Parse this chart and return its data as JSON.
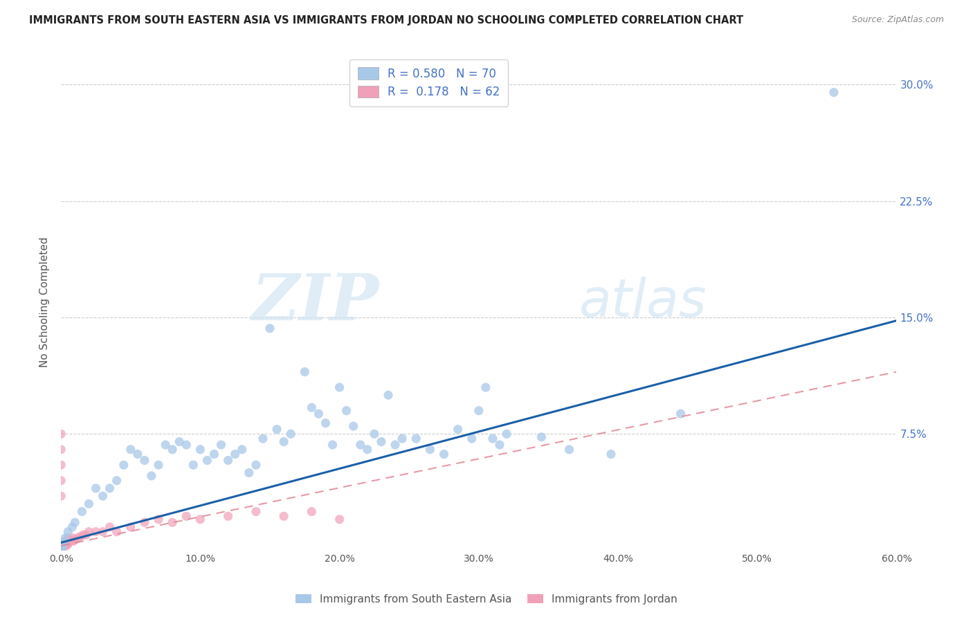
{
  "title": "IMMIGRANTS FROM SOUTH EASTERN ASIA VS IMMIGRANTS FROM JORDAN NO SCHOOLING COMPLETED CORRELATION CHART",
  "source": "Source: ZipAtlas.com",
  "ylabel": "No Schooling Completed",
  "xlim": [
    0.0,
    0.6
  ],
  "ylim": [
    0.0,
    0.32
  ],
  "xticks": [
    0.0,
    0.1,
    0.2,
    0.3,
    0.4,
    0.5,
    0.6
  ],
  "xtick_labels": [
    "0.0%",
    "10.0%",
    "20.0%",
    "30.0%",
    "40.0%",
    "50.0%",
    "60.0%"
  ],
  "yticks": [
    0.0,
    0.075,
    0.15,
    0.225,
    0.3
  ],
  "ytick_labels": [
    "",
    "7.5%",
    "15.0%",
    "22.5%",
    "30.0%"
  ],
  "blue_color": "#a8c8e8",
  "pink_color": "#f0a0b8",
  "trend_blue": "#1a5fa8",
  "trend_pink_color": "#e08090",
  "watermark_zip": "ZIP",
  "watermark_atlas": "atlas",
  "legend_label_blue": "Immigrants from South Eastern Asia",
  "legend_label_pink": "Immigrants from Jordan",
  "R_blue": 0.58,
  "N_blue": 70,
  "R_pink": 0.178,
  "N_pink": 62,
  "blue_trend_x0": 0.0,
  "blue_trend_y0": 0.005,
  "blue_trend_x1": 0.6,
  "blue_trend_y1": 0.148,
  "pink_trend_x0": 0.0,
  "pink_trend_y0": 0.003,
  "pink_trend_x1": 0.6,
  "pink_trend_y1": 0.115,
  "blue_x": [
    0.555,
    0.445,
    0.395,
    0.365,
    0.345,
    0.32,
    0.315,
    0.31,
    0.305,
    0.3,
    0.295,
    0.285,
    0.275,
    0.265,
    0.255,
    0.245,
    0.24,
    0.235,
    0.23,
    0.225,
    0.22,
    0.215,
    0.21,
    0.205,
    0.2,
    0.195,
    0.19,
    0.185,
    0.18,
    0.175,
    0.165,
    0.16,
    0.155,
    0.15,
    0.145,
    0.14,
    0.135,
    0.13,
    0.125,
    0.12,
    0.115,
    0.11,
    0.105,
    0.1,
    0.095,
    0.09,
    0.085,
    0.08,
    0.075,
    0.07,
    0.065,
    0.06,
    0.055,
    0.05,
    0.045,
    0.04,
    0.035,
    0.03,
    0.025,
    0.02,
    0.015,
    0.01,
    0.008,
    0.005,
    0.003,
    0.002,
    0.001,
    0.0005,
    0.0003,
    0.0001
  ],
  "blue_y": [
    0.295,
    0.088,
    0.062,
    0.065,
    0.073,
    0.075,
    0.068,
    0.072,
    0.105,
    0.09,
    0.072,
    0.078,
    0.062,
    0.065,
    0.072,
    0.072,
    0.068,
    0.1,
    0.07,
    0.075,
    0.065,
    0.068,
    0.08,
    0.09,
    0.105,
    0.068,
    0.082,
    0.088,
    0.092,
    0.115,
    0.075,
    0.07,
    0.078,
    0.143,
    0.072,
    0.055,
    0.05,
    0.065,
    0.062,
    0.058,
    0.068,
    0.062,
    0.058,
    0.065,
    0.055,
    0.068,
    0.07,
    0.065,
    0.068,
    0.055,
    0.048,
    0.058,
    0.062,
    0.065,
    0.055,
    0.045,
    0.04,
    0.035,
    0.04,
    0.03,
    0.025,
    0.018,
    0.015,
    0.012,
    0.008,
    0.005,
    0.003,
    0.001,
    0.0005,
    0.0002
  ],
  "pink_x": [
    0.0,
    0.0,
    0.0,
    0.0,
    0.0,
    0.0,
    0.0,
    0.0,
    0.0,
    0.0,
    0.0,
    0.0,
    0.0,
    0.0,
    0.0,
    0.0,
    0.0,
    0.0,
    0.0,
    0.0,
    0.0,
    0.0,
    0.001,
    0.001,
    0.002,
    0.002,
    0.003,
    0.003,
    0.004,
    0.004,
    0.005,
    0.005,
    0.005,
    0.007,
    0.008,
    0.009,
    0.01,
    0.012,
    0.014,
    0.016,
    0.018,
    0.02,
    0.025,
    0.03,
    0.035,
    0.04,
    0.05,
    0.06,
    0.07,
    0.08,
    0.09,
    0.1,
    0.12,
    0.14,
    0.16,
    0.18,
    0.2,
    0.0,
    0.0,
    0.0,
    0.0,
    0.0
  ],
  "pink_y": [
    0.0,
    0.0,
    0.0,
    0.0,
    0.0,
    0.0,
    0.0,
    0.0,
    0.0,
    0.0,
    0.0,
    0.0,
    0.001,
    0.001,
    0.001,
    0.001,
    0.002,
    0.002,
    0.003,
    0.003,
    0.005,
    0.005,
    0.002,
    0.004,
    0.003,
    0.005,
    0.004,
    0.006,
    0.003,
    0.005,
    0.004,
    0.006,
    0.008,
    0.006,
    0.008,
    0.006,
    0.007,
    0.008,
    0.009,
    0.01,
    0.01,
    0.012,
    0.012,
    0.012,
    0.015,
    0.012,
    0.015,
    0.018,
    0.02,
    0.018,
    0.022,
    0.02,
    0.022,
    0.025,
    0.022,
    0.025,
    0.02,
    0.075,
    0.065,
    0.055,
    0.045,
    0.035
  ]
}
